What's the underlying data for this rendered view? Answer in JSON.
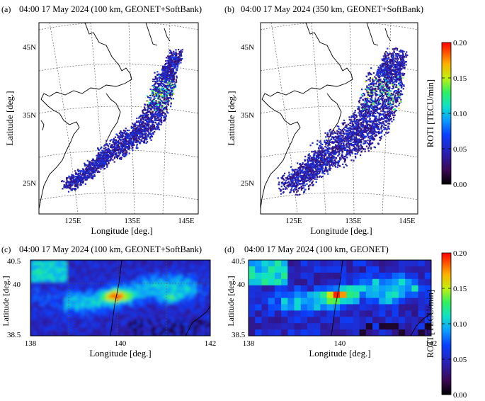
{
  "panels": [
    {
      "id": "a",
      "letter": "(a)",
      "title": "04:00 17 May 2024 (100 km, GEONET+SoftBank)",
      "xlabel": "Longitude [deg.]",
      "ylabel": "Latitude [deg.]",
      "xticks": [
        "125E",
        "135E",
        "145E"
      ],
      "yticks": [
        "45N",
        "35N",
        "25N"
      ]
    },
    {
      "id": "b",
      "letter": "(b)",
      "title": "04:00 17 May 2024 (350 km, GEONET+SoftBank)",
      "xlabel": "Longitude [deg.]",
      "ylabel": "Latitude [deg.]",
      "xticks": [
        "125E",
        "135E",
        "145E"
      ],
      "yticks": [
        "45N",
        "35N",
        "25N"
      ]
    },
    {
      "id": "c",
      "letter": "(c)",
      "title": "04:00 17 May 2024 (100 km, GEONET+SoftBank)",
      "xlabel": "Longitude [deg.]",
      "ylabel": "Latitude [deg.]",
      "xticks": [
        "138",
        "140",
        "142"
      ],
      "yticks": [
        "40.5",
        "40",
        "38.5"
      ]
    },
    {
      "id": "d",
      "letter": "(d)",
      "title": "04:00 17 May 2024 (100 km, GEONET)",
      "xlabel": "Longitude [deg.]",
      "ylabel": "Latitude [deg.]",
      "xticks": [
        "138",
        "140",
        "142"
      ],
      "yticks": [
        "40.5",
        "40",
        "38.5"
      ]
    }
  ],
  "colorbar": {
    "label": "ROTI [TECU/min]",
    "ticks": [
      "0.20",
      "0.15",
      "0.10",
      "0.05",
      "0.00"
    ]
  }
}
